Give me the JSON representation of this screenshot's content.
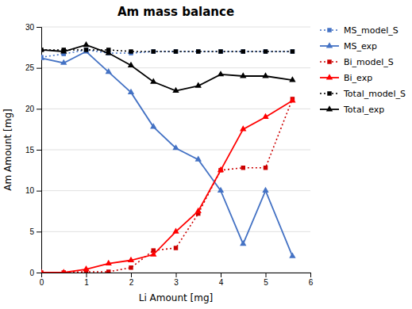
{
  "chart_data": {
    "type": "line",
    "title": "Am mass balance",
    "x_label": "Li Amount [mg]",
    "y_label": "Am Amount [mg]",
    "x": [
      0,
      0.5,
      1.0,
      1.5,
      2.0,
      2.5,
      3.0,
      3.5,
      4.0,
      4.5,
      5.0,
      5.6
    ],
    "xlim": [
      0,
      6
    ],
    "ylim": [
      0,
      30
    ],
    "xticks": [
      0,
      1,
      2,
      3,
      4,
      5,
      6
    ],
    "yticks": [
      0,
      5,
      10,
      15,
      20,
      25,
      30
    ],
    "grid": true,
    "series": [
      {
        "name": "MS_model_S",
        "color": "#4472C4",
        "line_style": "dotted",
        "marker": "square",
        "values": [
          26.3,
          26.7,
          27.2,
          26.8,
          26.8,
          27.0,
          27.0,
          27.0,
          27.0,
          27.0,
          27.0,
          27.0
        ]
      },
      {
        "name": "MS_exp",
        "color": "#4472C4",
        "line_style": "solid",
        "marker": "triangle",
        "values": [
          26.2,
          25.6,
          27.0,
          24.5,
          22.0,
          17.8,
          15.2,
          13.8,
          10.0,
          3.5,
          10.0,
          2.0
        ]
      },
      {
        "name": "Bi_model_S",
        "color": "#CC0000",
        "line_style": "dotted",
        "marker": "square",
        "values": [
          0.0,
          0.0,
          0.1,
          0.1,
          0.6,
          2.7,
          3.0,
          7.2,
          12.5,
          12.8,
          12.8,
          21.2
        ]
      },
      {
        "name": "Bi_exp",
        "color": "#FF0000",
        "line_style": "solid",
        "marker": "triangle",
        "values": [
          0.0,
          0.0,
          0.4,
          1.1,
          1.5,
          2.2,
          5.0,
          7.5,
          12.5,
          17.5,
          19.0,
          21.0
        ]
      },
      {
        "name": "Total_model_S",
        "color": "#000000",
        "line_style": "dotted",
        "marker": "square",
        "values": [
          27.2,
          27.2,
          27.2,
          27.2,
          27.0,
          27.0,
          27.0,
          27.0,
          27.0,
          27.0,
          27.0,
          27.0
        ]
      },
      {
        "name": "Total_exp",
        "color": "#000000",
        "line_style": "solid",
        "marker": "triangle",
        "values": [
          27.2,
          27.0,
          27.8,
          26.8,
          25.3,
          23.3,
          22.2,
          22.8,
          24.2,
          24.0,
          24.0,
          23.5
        ]
      }
    ]
  }
}
